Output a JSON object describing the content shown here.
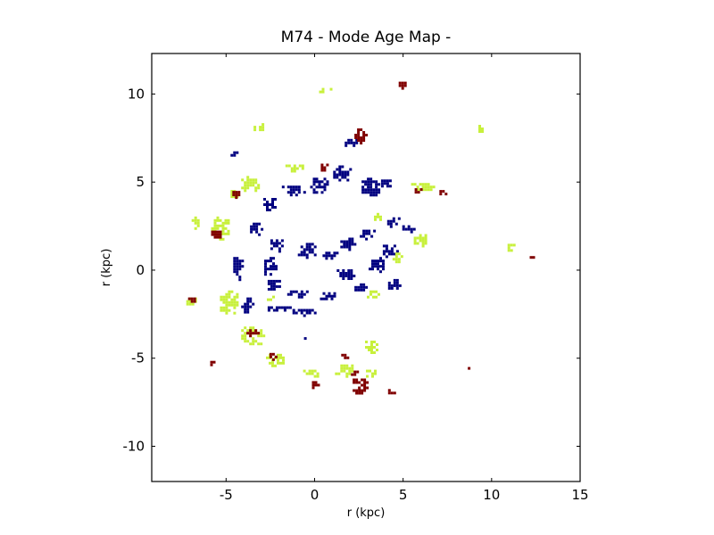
{
  "chart_data": {
    "type": "heatmap",
    "title": "M74 - Mode Age Map -",
    "xlabel": "r (kpc)",
    "ylabel": "r (kpc)",
    "xlim": [
      -9.2,
      15
    ],
    "ylim": [
      -12,
      12.3
    ],
    "x_ticks": [
      -5,
      0,
      5,
      10,
      15
    ],
    "x_tick_labels": [
      "-5",
      "0",
      "5",
      "10",
      "15"
    ],
    "y_ticks": [
      10,
      5,
      0,
      -5,
      -10
    ],
    "y_tick_labels": [
      "10",
      "5",
      "0",
      "-5",
      "-10"
    ],
    "grid": false,
    "legend": "none",
    "colors": {
      "young": "#000080",
      "intermediate": "#c8f03c",
      "old": "#800000",
      "frame": "#000000",
      "background": "#ffffff"
    },
    "age_classes": [
      {
        "class": "young",
        "color": "#000080"
      },
      {
        "class": "intermediate",
        "color": "#c8f03c"
      },
      {
        "class": "old",
        "color": "#800000"
      }
    ],
    "regions": [
      {
        "age": "young",
        "center": [
          -0.5,
          1.2
        ],
        "size": [
          1.2,
          1.0
        ]
      },
      {
        "age": "young",
        "center": [
          0.8,
          0.9
        ],
        "size": [
          1.0,
          0.6
        ]
      },
      {
        "age": "young",
        "center": [
          1.8,
          1.6
        ],
        "size": [
          1.0,
          0.8
        ]
      },
      {
        "age": "young",
        "center": [
          -2.2,
          1.5
        ],
        "size": [
          0.9,
          0.8
        ]
      },
      {
        "age": "young",
        "center": [
          -2.6,
          0.3
        ],
        "size": [
          0.8,
          1.2
        ]
      },
      {
        "age": "young",
        "center": [
          -2.3,
          -0.8
        ],
        "size": [
          1.0,
          0.8
        ]
      },
      {
        "age": "young",
        "center": [
          -1.0,
          -1.3
        ],
        "size": [
          1.4,
          0.6
        ]
      },
      {
        "age": "young",
        "center": [
          0.6,
          -1.4
        ],
        "size": [
          1.2,
          0.6
        ]
      },
      {
        "age": "young",
        "center": [
          1.7,
          -0.2
        ],
        "size": [
          1.2,
          0.8
        ]
      },
      {
        "age": "young",
        "center": [
          2.5,
          -0.9
        ],
        "size": [
          0.8,
          0.6
        ]
      },
      {
        "age": "young",
        "center": [
          3.4,
          0.4
        ],
        "size": [
          1.0,
          1.0
        ]
      },
      {
        "age": "young",
        "center": [
          4.2,
          1.2
        ],
        "size": [
          1.0,
          0.8
        ]
      },
      {
        "age": "young",
        "center": [
          4.4,
          2.8
        ],
        "size": [
          0.9,
          0.7
        ]
      },
      {
        "age": "young",
        "center": [
          2.9,
          2.1
        ],
        "size": [
          1.0,
          0.7
        ]
      },
      {
        "age": "young",
        "center": [
          3.1,
          4.8
        ],
        "size": [
          1.2,
          1.2
        ]
      },
      {
        "age": "young",
        "center": [
          1.5,
          5.6
        ],
        "size": [
          1.2,
          1.0
        ]
      },
      {
        "age": "young",
        "center": [
          0.2,
          4.9
        ],
        "size": [
          1.2,
          1.0
        ]
      },
      {
        "age": "young",
        "center": [
          -1.3,
          4.6
        ],
        "size": [
          1.4,
          0.7
        ]
      },
      {
        "age": "young",
        "center": [
          -2.6,
          3.8
        ],
        "size": [
          0.9,
          0.9
        ]
      },
      {
        "age": "young",
        "center": [
          -3.4,
          2.4
        ],
        "size": [
          0.8,
          0.9
        ]
      },
      {
        "age": "young",
        "center": [
          -4.4,
          0.2
        ],
        "size": [
          0.7,
          1.4
        ]
      },
      {
        "age": "young",
        "center": [
          -3.9,
          -1.9
        ],
        "size": [
          0.8,
          1.0
        ]
      },
      {
        "age": "young",
        "center": [
          -2.0,
          -2.1
        ],
        "size": [
          1.6,
          0.4
        ]
      },
      {
        "age": "young",
        "center": [
          -0.7,
          -2.3
        ],
        "size": [
          1.4,
          0.5
        ]
      },
      {
        "age": "young",
        "center": [
          1.9,
          7.3
        ],
        "size": [
          1.0,
          0.6
        ]
      },
      {
        "age": "young",
        "center": [
          4.0,
          5.0
        ],
        "size": [
          0.8,
          0.6
        ]
      },
      {
        "age": "young",
        "center": [
          5.2,
          2.4
        ],
        "size": [
          0.8,
          0.6
        ]
      },
      {
        "age": "young",
        "center": [
          4.4,
          -0.7
        ],
        "size": [
          0.8,
          0.7
        ]
      },
      {
        "age": "young",
        "center": [
          -4.6,
          6.7
        ],
        "size": [
          0.6,
          0.4
        ]
      },
      {
        "age": "young",
        "center": [
          -0.6,
          -3.8
        ],
        "size": [
          0.3,
          0.3
        ]
      },
      {
        "age": "intermediate",
        "center": [
          -5.4,
          2.5
        ],
        "size": [
          1.2,
          1.4
        ]
      },
      {
        "age": "intermediate",
        "center": [
          -6.8,
          2.8
        ],
        "size": [
          0.6,
          0.8
        ]
      },
      {
        "age": "intermediate",
        "center": [
          -4.9,
          -1.8
        ],
        "size": [
          1.2,
          1.6
        ]
      },
      {
        "age": "intermediate",
        "center": [
          -7.0,
          -1.7
        ],
        "size": [
          0.8,
          0.6
        ]
      },
      {
        "age": "intermediate",
        "center": [
          -3.6,
          -3.7
        ],
        "size": [
          1.4,
          1.3
        ]
      },
      {
        "age": "intermediate",
        "center": [
          -2.3,
          -5.0
        ],
        "size": [
          1.2,
          0.8
        ]
      },
      {
        "age": "intermediate",
        "center": [
          -0.2,
          -5.8
        ],
        "size": [
          1.2,
          0.6
        ]
      },
      {
        "age": "intermediate",
        "center": [
          1.6,
          -5.6
        ],
        "size": [
          1.2,
          0.8
        ]
      },
      {
        "age": "intermediate",
        "center": [
          3.2,
          -5.8
        ],
        "size": [
          0.9,
          0.6
        ]
      },
      {
        "age": "intermediate",
        "center": [
          3.1,
          -4.3
        ],
        "size": [
          0.8,
          0.9
        ]
      },
      {
        "age": "intermediate",
        "center": [
          -3.7,
          5.0
        ],
        "size": [
          1.2,
          1.0
        ]
      },
      {
        "age": "intermediate",
        "center": [
          -4.6,
          4.4
        ],
        "size": [
          0.6,
          0.6
        ]
      },
      {
        "age": "intermediate",
        "center": [
          -1.2,
          5.9
        ],
        "size": [
          1.2,
          0.5
        ]
      },
      {
        "age": "intermediate",
        "center": [
          6.0,
          4.8
        ],
        "size": [
          1.4,
          0.6
        ]
      },
      {
        "age": "intermediate",
        "center": [
          5.9,
          1.8
        ],
        "size": [
          0.9,
          0.8
        ]
      },
      {
        "age": "intermediate",
        "center": [
          4.6,
          0.8
        ],
        "size": [
          0.7,
          0.7
        ]
      },
      {
        "age": "intermediate",
        "center": [
          3.2,
          -1.3
        ],
        "size": [
          0.8,
          0.6
        ]
      },
      {
        "age": "intermediate",
        "center": [
          -3.2,
          8.2
        ],
        "size": [
          0.8,
          0.6
        ]
      },
      {
        "age": "intermediate",
        "center": [
          0.6,
          10.3
        ],
        "size": [
          1.0,
          0.4
        ]
      },
      {
        "age": "intermediate",
        "center": [
          3.4,
          3.1
        ],
        "size": [
          0.7,
          0.6
        ]
      },
      {
        "age": "intermediate",
        "center": [
          -2.5,
          -1.5
        ],
        "size": [
          0.7,
          0.4
        ]
      },
      {
        "age": "intermediate",
        "center": [
          9.3,
          8.1
        ],
        "size": [
          0.4,
          0.6
        ]
      },
      {
        "age": "intermediate",
        "center": [
          11.0,
          1.4
        ],
        "size": [
          0.5,
          0.5
        ]
      },
      {
        "age": "old",
        "center": [
          -5.6,
          2.1
        ],
        "size": [
          0.8,
          0.6
        ]
      },
      {
        "age": "old",
        "center": [
          -7.0,
          -1.6
        ],
        "size": [
          0.6,
          0.4
        ]
      },
      {
        "age": "old",
        "center": [
          -3.6,
          -3.5
        ],
        "size": [
          0.8,
          0.6
        ]
      },
      {
        "age": "old",
        "center": [
          -2.4,
          -4.8
        ],
        "size": [
          0.6,
          0.5
        ]
      },
      {
        "age": "old",
        "center": [
          2.5,
          -6.5
        ],
        "size": [
          1.0,
          1.0
        ]
      },
      {
        "age": "old",
        "center": [
          2.2,
          -5.8
        ],
        "size": [
          0.6,
          0.5
        ]
      },
      {
        "age": "old",
        "center": [
          0.0,
          -6.4
        ],
        "size": [
          0.6,
          0.5
        ]
      },
      {
        "age": "old",
        "center": [
          4.3,
          -6.8
        ],
        "size": [
          0.6,
          0.4
        ]
      },
      {
        "age": "old",
        "center": [
          2.5,
          7.7
        ],
        "size": [
          0.8,
          1.0
        ]
      },
      {
        "age": "old",
        "center": [
          0.5,
          5.9
        ],
        "size": [
          0.6,
          0.6
        ]
      },
      {
        "age": "old",
        "center": [
          -4.5,
          4.4
        ],
        "size": [
          0.6,
          0.5
        ]
      },
      {
        "age": "old",
        "center": [
          -3.2,
          8.3
        ],
        "size": [
          0.4,
          0.4
        ]
      },
      {
        "age": "old",
        "center": [
          5.8,
          4.6
        ],
        "size": [
          0.6,
          0.4
        ]
      },
      {
        "age": "old",
        "center": [
          7.2,
          4.5
        ],
        "size": [
          0.6,
          0.4
        ]
      },
      {
        "age": "old",
        "center": [
          4.9,
          10.6
        ],
        "size": [
          0.6,
          0.5
        ]
      },
      {
        "age": "old",
        "center": [
          12.2,
          0.8
        ],
        "size": [
          0.4,
          0.3
        ]
      },
      {
        "age": "old",
        "center": [
          -5.8,
          -5.2
        ],
        "size": [
          0.5,
          0.4
        ]
      },
      {
        "age": "old",
        "center": [
          8.7,
          -5.5
        ],
        "size": [
          0.4,
          0.3
        ]
      },
      {
        "age": "old",
        "center": [
          1.6,
          -4.8
        ],
        "size": [
          0.5,
          0.4
        ]
      }
    ]
  }
}
